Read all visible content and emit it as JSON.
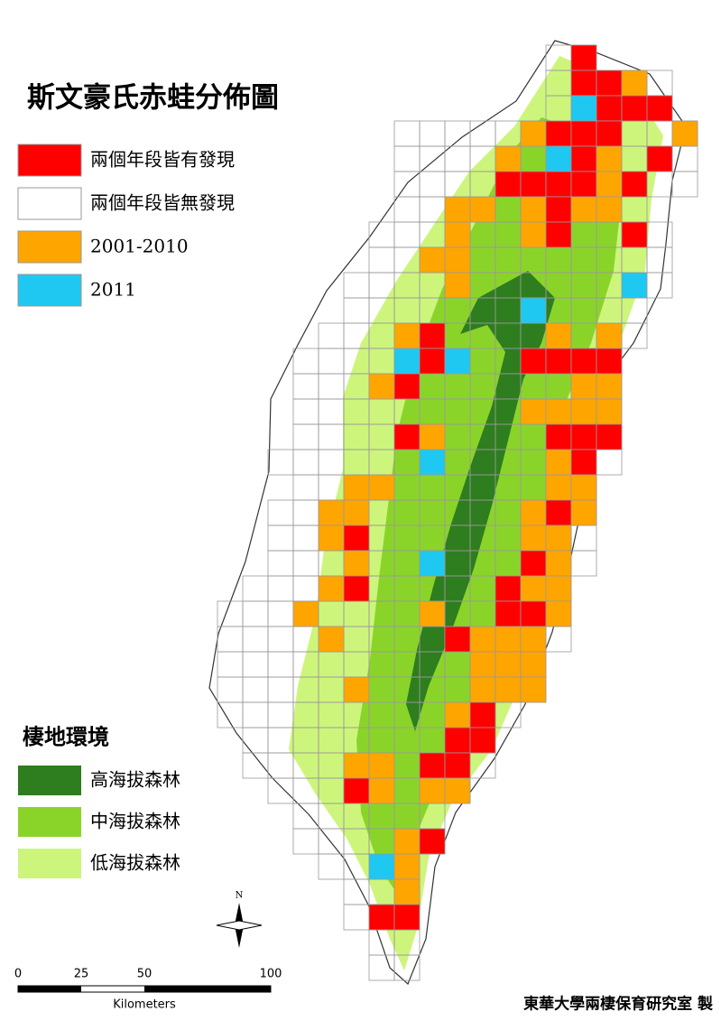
{
  "map": {
    "title": "斯文豪氏赤蛙分佈圖",
    "legend": [
      {
        "label": "兩個年段皆有發現",
        "color": "#ff0000"
      },
      {
        "label": "兩個年段皆無發現",
        "color": "#ffffff"
      },
      {
        "label": "2001-2010",
        "color": "#ffa500"
      },
      {
        "label": "2011",
        "color": "#1ec8f0"
      }
    ],
    "habitat_title": "棲地環境",
    "habitat_legend": [
      {
        "label": "高海拔森林",
        "color": "#2e7d1e"
      },
      {
        "label": "中海拔森林",
        "color": "#8ad42a"
      },
      {
        "label": "低海拔森林",
        "color": "#cdf57c"
      }
    ],
    "scale_labels": [
      0,
      25,
      50,
      100
    ],
    "scale_unit": "Kilometers",
    "north": "N",
    "credit": "東華大學兩棲保育研究室 製"
  }
}
